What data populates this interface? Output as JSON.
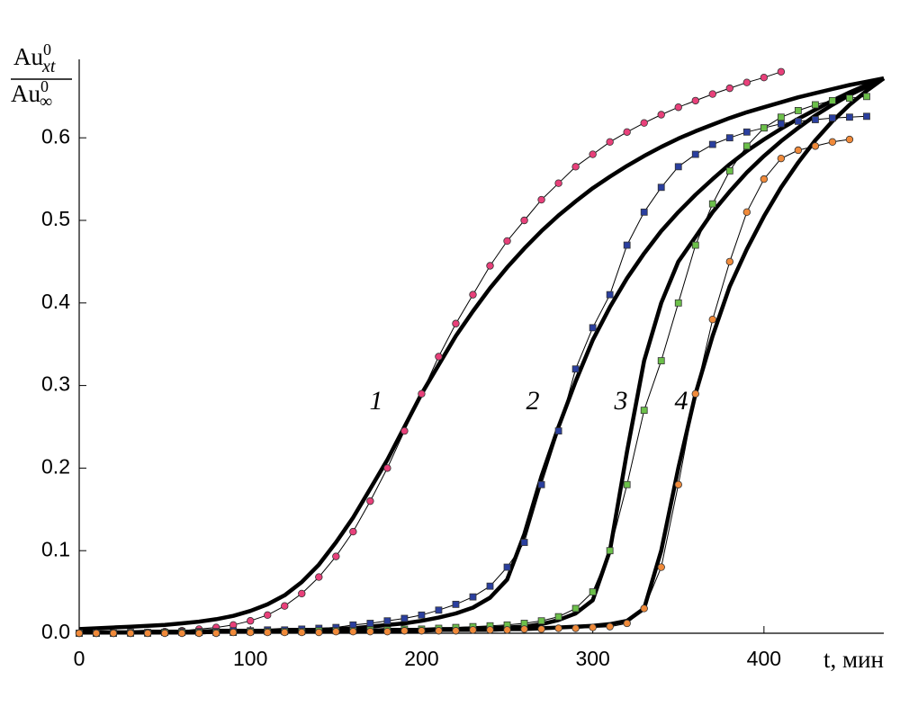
{
  "chart_data": {
    "type": "line",
    "y_label": {
      "numerator": {
        "base": "Au",
        "sup": "0",
        "sub": "xt"
      },
      "denominator": {
        "base": "Au",
        "sup": "0",
        "sub": "∞"
      }
    },
    "x_label": "t, мин",
    "xlim": [
      0,
      470
    ],
    "ylim": [
      0,
      0.695
    ],
    "xticks": [
      0,
      100,
      200,
      300,
      400
    ],
    "yticks": [
      {
        "value": 0,
        "label": "0.0"
      },
      0.1,
      0.2,
      0.3,
      0.4,
      0.5,
      0.6
    ],
    "grid": false,
    "series": [
      {
        "kind": "points",
        "marker": "circle",
        "color": "#e8407a",
        "x": [
          0,
          10,
          20,
          30,
          40,
          50,
          60,
          70,
          80,
          90,
          100,
          110,
          120,
          130,
          140,
          150,
          160,
          170,
          180,
          190,
          200,
          210,
          220,
          230,
          240,
          250,
          260,
          270,
          280,
          290,
          300,
          310,
          320,
          330,
          340,
          350,
          360,
          370,
          380,
          390,
          400,
          410
        ],
        "values": [
          0,
          0,
          0,
          0,
          0.001,
          0.002,
          0.003,
          0.005,
          0.007,
          0.01,
          0.015,
          0.022,
          0.033,
          0.048,
          0.068,
          0.093,
          0.123,
          0.16,
          0.2,
          0.245,
          0.29,
          0.335,
          0.375,
          0.41,
          0.445,
          0.475,
          0.5,
          0.525,
          0.545,
          0.565,
          0.58,
          0.595,
          0.607,
          0.618,
          0.628,
          0.637,
          0.645,
          0.653,
          0.66,
          0.667,
          0.673,
          0.68
        ]
      },
      {
        "kind": "points",
        "marker": "square",
        "color": "#2a3f9f",
        "x": [
          0,
          10,
          20,
          30,
          40,
          50,
          60,
          70,
          80,
          90,
          100,
          110,
          120,
          130,
          140,
          150,
          160,
          170,
          180,
          190,
          200,
          210,
          220,
          230,
          240,
          250,
          260,
          270,
          280,
          290,
          300,
          310,
          320,
          330,
          340,
          350,
          360,
          370,
          380,
          390,
          400,
          410,
          420,
          430,
          440,
          450,
          460
        ],
        "values": [
          0,
          0,
          0,
          0.001,
          0.001,
          0.001,
          0.002,
          0.002,
          0.002,
          0.003,
          0.003,
          0.004,
          0.004,
          0.005,
          0.006,
          0.007,
          0.01,
          0.012,
          0.015,
          0.018,
          0.022,
          0.028,
          0.035,
          0.044,
          0.057,
          0.08,
          0.11,
          0.18,
          0.245,
          0.32,
          0.37,
          0.41,
          0.47,
          0.51,
          0.54,
          0.565,
          0.58,
          0.592,
          0.6,
          0.607,
          0.612,
          0.617,
          0.62,
          0.622,
          0.624,
          0.625,
          0.626
        ]
      },
      {
        "kind": "points",
        "marker": "square",
        "color": "#6cc04a",
        "x": [
          0,
          10,
          20,
          30,
          40,
          50,
          60,
          70,
          80,
          90,
          100,
          110,
          120,
          130,
          140,
          150,
          160,
          170,
          180,
          190,
          200,
          210,
          220,
          230,
          240,
          250,
          260,
          270,
          280,
          290,
          300,
          310,
          320,
          330,
          340,
          350,
          360,
          370,
          380,
          390,
          400,
          410,
          420,
          430,
          440,
          450,
          460
        ],
        "values": [
          0,
          0,
          0,
          0,
          0,
          0.001,
          0.001,
          0.001,
          0.001,
          0.001,
          0.002,
          0.002,
          0.002,
          0.002,
          0.003,
          0.003,
          0.003,
          0.004,
          0.004,
          0.005,
          0.005,
          0.006,
          0.007,
          0.008,
          0.009,
          0.01,
          0.012,
          0.015,
          0.02,
          0.03,
          0.05,
          0.1,
          0.18,
          0.27,
          0.33,
          0.4,
          0.47,
          0.52,
          0.56,
          0.59,
          0.612,
          0.625,
          0.633,
          0.64,
          0.645,
          0.648,
          0.65
        ]
      },
      {
        "kind": "points",
        "marker": "circle",
        "color": "#f08a3a",
        "x": [
          0,
          10,
          20,
          30,
          40,
          50,
          60,
          70,
          80,
          90,
          100,
          110,
          120,
          130,
          140,
          150,
          160,
          170,
          180,
          190,
          200,
          210,
          220,
          230,
          240,
          250,
          260,
          270,
          280,
          290,
          300,
          310,
          320,
          330,
          340,
          350,
          360,
          370,
          380,
          390,
          400,
          410,
          420,
          430,
          440,
          450
        ],
        "values": [
          0,
          0,
          0,
          0,
          0,
          0,
          0,
          0,
          0,
          0.001,
          0.001,
          0.001,
          0.001,
          0.001,
          0.001,
          0.002,
          0.002,
          0.002,
          0.002,
          0.003,
          0.003,
          0.003,
          0.003,
          0.004,
          0.004,
          0.004,
          0.005,
          0.005,
          0.006,
          0.006,
          0.007,
          0.008,
          0.012,
          0.03,
          0.08,
          0.18,
          0.29,
          0.38,
          0.45,
          0.51,
          0.55,
          0.575,
          0.585,
          0.59,
          0.595,
          0.598
        ]
      },
      {
        "kind": "curve",
        "label": "1",
        "color": "#000000",
        "x": [
          0,
          10,
          20,
          30,
          40,
          50,
          60,
          70,
          80,
          90,
          100,
          110,
          120,
          130,
          140,
          150,
          160,
          170,
          180,
          190,
          200,
          210,
          220,
          230,
          240,
          250,
          260,
          270,
          280,
          290,
          300,
          310,
          320,
          330,
          340,
          350,
          360,
          370,
          380,
          390,
          400,
          410,
          420,
          430,
          440,
          450,
          460,
          470
        ],
        "values": [
          0.005,
          0.006,
          0.007,
          0.008,
          0.009,
          0.01,
          0.012,
          0.014,
          0.017,
          0.021,
          0.027,
          0.035,
          0.046,
          0.062,
          0.083,
          0.11,
          0.14,
          0.175,
          0.21,
          0.25,
          0.29,
          0.325,
          0.36,
          0.39,
          0.418,
          0.443,
          0.466,
          0.487,
          0.506,
          0.523,
          0.539,
          0.553,
          0.566,
          0.578,
          0.589,
          0.599,
          0.608,
          0.616,
          0.624,
          0.631,
          0.637,
          0.643,
          0.649,
          0.654,
          0.659,
          0.664,
          0.668,
          0.672
        ]
      },
      {
        "kind": "curve",
        "label": "2",
        "color": "#000000",
        "x": [
          0,
          10,
          20,
          30,
          40,
          50,
          60,
          70,
          80,
          90,
          100,
          110,
          120,
          130,
          140,
          150,
          160,
          170,
          180,
          190,
          200,
          210,
          220,
          230,
          240,
          250,
          260,
          270,
          280,
          290,
          300,
          310,
          320,
          330,
          340,
          350,
          360,
          370,
          380,
          390,
          400,
          410,
          420,
          430,
          440,
          450,
          460,
          470
        ],
        "values": [
          0.001,
          0.001,
          0.001,
          0.001,
          0.002,
          0.002,
          0.002,
          0.002,
          0.003,
          0.003,
          0.003,
          0.003,
          0.004,
          0.004,
          0.004,
          0.005,
          0.006,
          0.008,
          0.01,
          0.012,
          0.015,
          0.019,
          0.024,
          0.031,
          0.043,
          0.065,
          0.12,
          0.19,
          0.25,
          0.305,
          0.355,
          0.395,
          0.43,
          0.46,
          0.487,
          0.51,
          0.531,
          0.55,
          0.568,
          0.584,
          0.598,
          0.611,
          0.623,
          0.634,
          0.645,
          0.655,
          0.664,
          0.672
        ]
      },
      {
        "kind": "curve",
        "label": "3",
        "color": "#000000",
        "x": [
          0,
          10,
          20,
          30,
          40,
          50,
          60,
          70,
          80,
          90,
          100,
          110,
          120,
          130,
          140,
          150,
          160,
          170,
          180,
          190,
          200,
          210,
          220,
          230,
          240,
          250,
          260,
          270,
          280,
          290,
          300,
          310,
          320,
          330,
          340,
          350,
          360,
          370,
          380,
          390,
          400,
          410,
          420,
          430,
          440,
          450,
          460,
          470
        ],
        "values": [
          0.001,
          0.001,
          0.001,
          0.001,
          0.001,
          0.001,
          0.001,
          0.001,
          0.002,
          0.002,
          0.002,
          0.002,
          0.002,
          0.002,
          0.003,
          0.003,
          0.003,
          0.003,
          0.004,
          0.004,
          0.004,
          0.005,
          0.005,
          0.006,
          0.006,
          0.007,
          0.008,
          0.011,
          0.016,
          0.024,
          0.04,
          0.1,
          0.22,
          0.33,
          0.4,
          0.45,
          0.48,
          0.51,
          0.535,
          0.558,
          0.578,
          0.596,
          0.612,
          0.627,
          0.64,
          0.652,
          0.662,
          0.672
        ]
      },
      {
        "kind": "curve",
        "label": "4",
        "color": "#000000",
        "x": [
          0,
          10,
          20,
          30,
          40,
          50,
          60,
          70,
          80,
          90,
          100,
          110,
          120,
          130,
          140,
          150,
          160,
          170,
          180,
          190,
          200,
          210,
          220,
          230,
          240,
          250,
          260,
          270,
          280,
          290,
          300,
          310,
          320,
          330,
          340,
          350,
          360,
          370,
          380,
          390,
          400,
          410,
          420,
          430,
          440,
          450,
          460,
          470
        ],
        "values": [
          0.001,
          0.001,
          0.001,
          0.001,
          0.001,
          0.001,
          0.001,
          0.001,
          0.002,
          0.002,
          0.002,
          0.002,
          0.002,
          0.002,
          0.002,
          0.002,
          0.002,
          0.003,
          0.003,
          0.003,
          0.003,
          0.004,
          0.004,
          0.004,
          0.004,
          0.005,
          0.005,
          0.006,
          0.007,
          0.008,
          0.009,
          0.011,
          0.015,
          0.03,
          0.1,
          0.2,
          0.29,
          0.36,
          0.42,
          0.465,
          0.505,
          0.54,
          0.57,
          0.597,
          0.62,
          0.64,
          0.657,
          0.672
        ]
      }
    ]
  }
}
